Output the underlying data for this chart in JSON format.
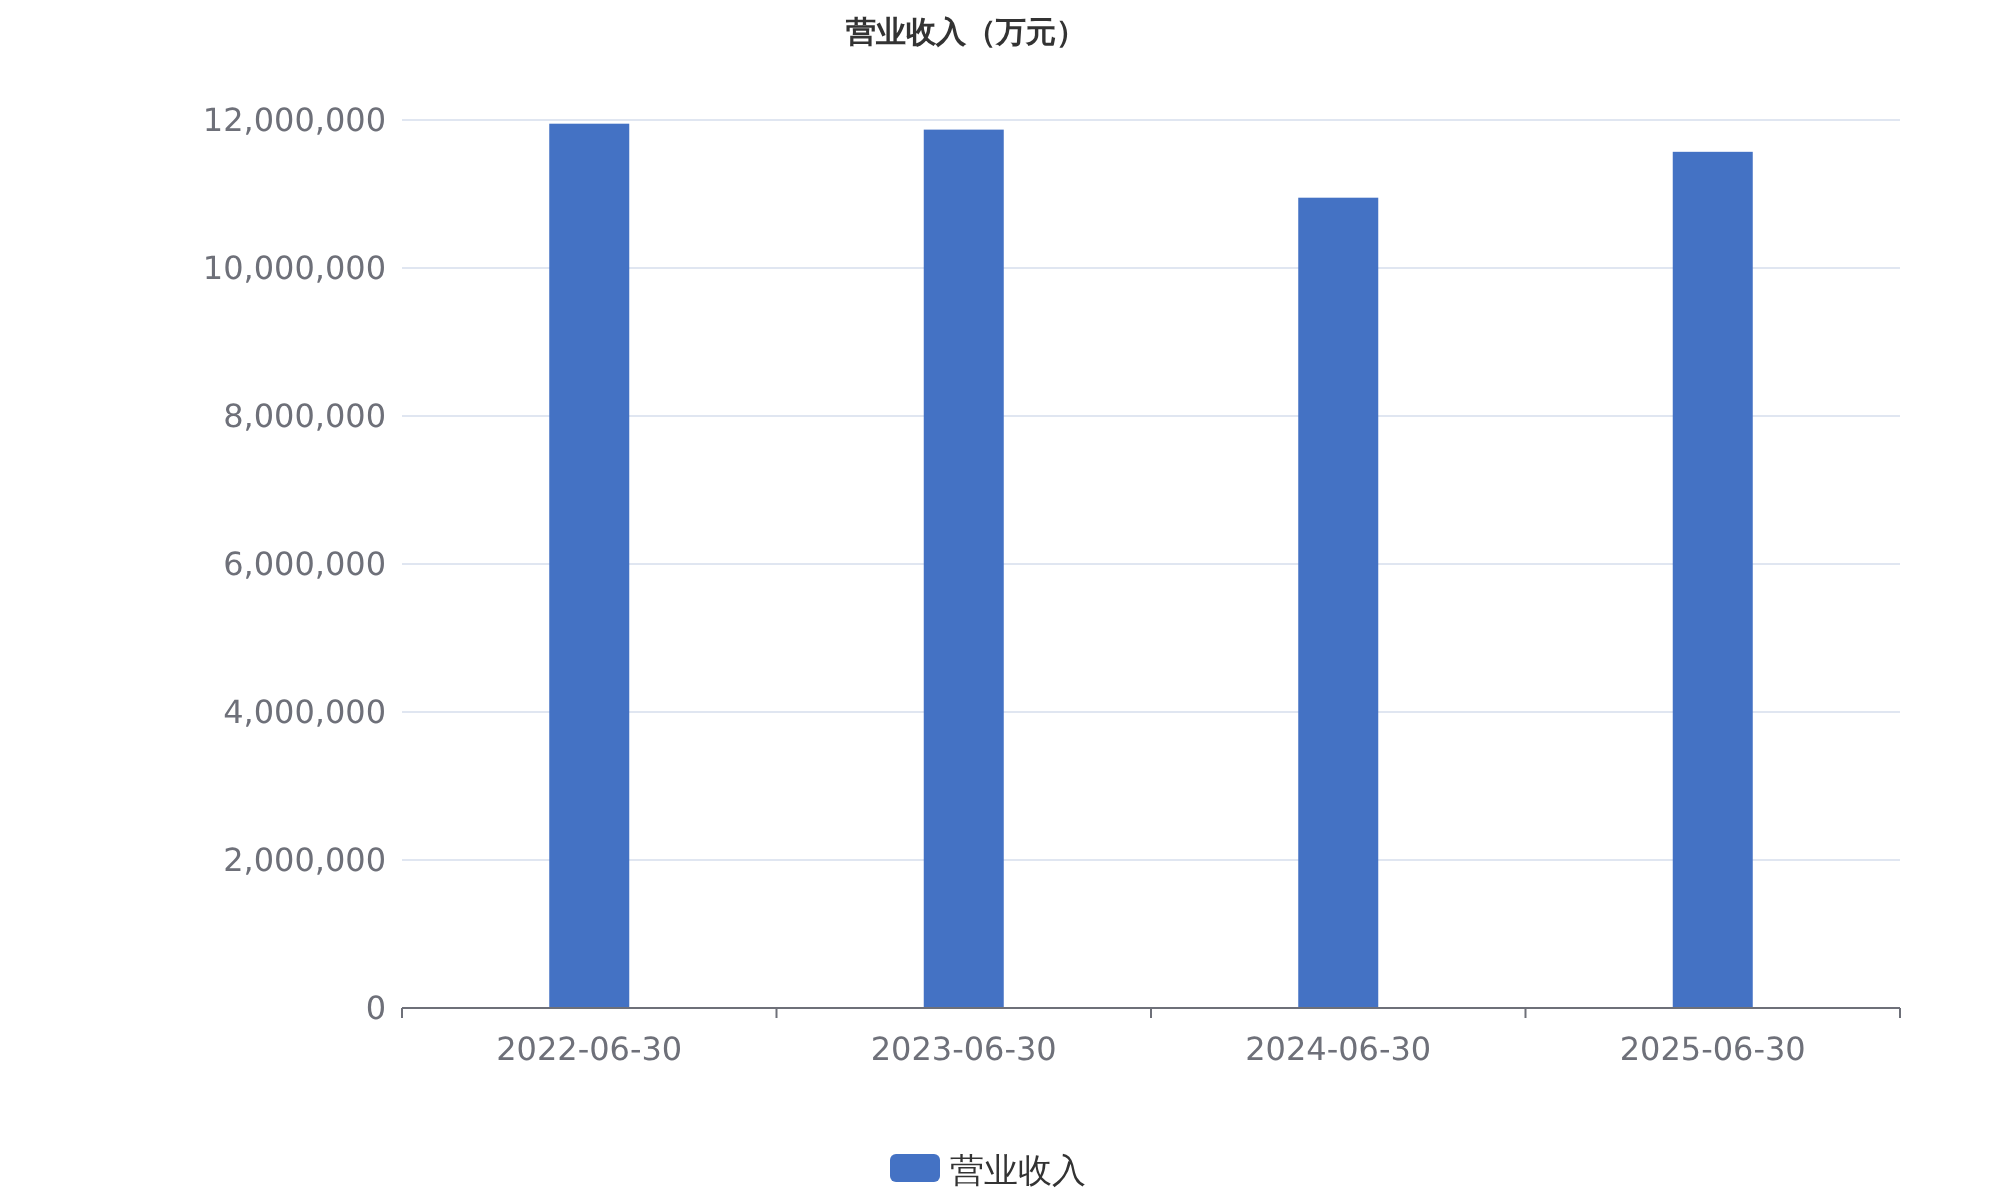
{
  "chart_data": {
    "type": "bar",
    "title": "营业收入（万元）",
    "categories": [
      "2022-06-30",
      "2023-06-30",
      "2024-06-30",
      "2025-06-30"
    ],
    "series": [
      {
        "name": "营业收入",
        "color": "#4472c4",
        "values": [
          11950000,
          11870000,
          10950000,
          11570000
        ]
      }
    ],
    "ylim": [
      0,
      12000000
    ],
    "yticks": [
      {
        "value": 0,
        "label": "0"
      },
      {
        "value": 2000000,
        "label": "2,000,000"
      },
      {
        "value": 4000000,
        "label": "4,000,000"
      },
      {
        "value": 6000000,
        "label": "6,000,000"
      },
      {
        "value": 8000000,
        "label": "8,000,000"
      },
      {
        "value": 10000000,
        "label": "10,000,000"
      },
      {
        "value": 12000000,
        "label": "12,000,000"
      }
    ],
    "grid": "y",
    "legend": "bottom"
  }
}
